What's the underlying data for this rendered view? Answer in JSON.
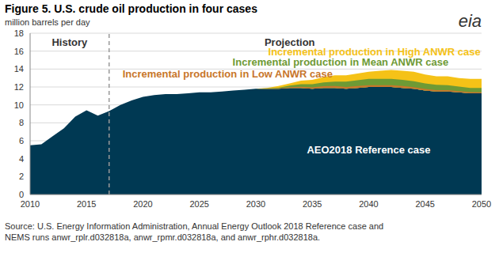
{
  "chart_data": {
    "type": "area",
    "title": "Figure 5. U.S. crude oil production in four cases",
    "subtitle": "million barrels per day",
    "logo": "eia",
    "source": [
      "Source: U.S. Energy Information Administration, Annual Energy Outlook 2018 Reference case and",
      "NEMS runs anwr_rplr.d032818a, anwr_rpmr.d032818a, and anwr_rphr.d032818a."
    ],
    "x": [
      2010,
      2011,
      2012,
      2013,
      2014,
      2015,
      2016,
      2017,
      2018,
      2019,
      2020,
      2021,
      2022,
      2023,
      2024,
      2025,
      2026,
      2027,
      2028,
      2029,
      2030,
      2031,
      2032,
      2033,
      2034,
      2035,
      2036,
      2037,
      2038,
      2039,
      2040,
      2041,
      2042,
      2043,
      2044,
      2045,
      2046,
      2047,
      2048,
      2049,
      2050
    ],
    "series": [
      {
        "name": "AEO2018 Reference case",
        "color": "#003953",
        "values": [
          5.5,
          5.6,
          6.5,
          7.4,
          8.7,
          9.4,
          8.8,
          9.3,
          10.0,
          10.5,
          10.9,
          11.1,
          11.2,
          11.2,
          11.3,
          11.4,
          11.4,
          11.5,
          11.6,
          11.7,
          11.8,
          11.8,
          11.8,
          11.9,
          11.9,
          11.8,
          11.9,
          11.9,
          11.8,
          11.9,
          12.0,
          12.0,
          12.0,
          11.9,
          11.8,
          11.6,
          11.5,
          11.5,
          11.4,
          11.3,
          11.3
        ]
      },
      {
        "name": "Incremental production in High ANWR case",
        "color": "#f5c217",
        "values": [
          0,
          0,
          0,
          0,
          0,
          0,
          0,
          0,
          0,
          0,
          0,
          0,
          0,
          0,
          0,
          0,
          0,
          0,
          0,
          0,
          0,
          0.1,
          0.3,
          0.5,
          0.8,
          1.0,
          1.2,
          1.4,
          1.5,
          1.6,
          1.7,
          1.8,
          1.9,
          1.9,
          1.9,
          1.8,
          1.7,
          1.7,
          1.6,
          1.6,
          1.6
        ]
      },
      {
        "name": "Incremental production in Mean ANWR case",
        "color": "#6e9a35",
        "values": [
          0,
          0,
          0,
          0,
          0,
          0,
          0,
          0,
          0,
          0,
          0,
          0,
          0,
          0,
          0,
          0,
          0,
          0,
          0,
          0,
          0,
          0.05,
          0.12,
          0.25,
          0.4,
          0.5,
          0.6,
          0.7,
          0.8,
          0.85,
          0.9,
          0.9,
          0.9,
          0.9,
          0.85,
          0.8,
          0.75,
          0.7,
          0.65,
          0.6,
          0.6
        ]
      },
      {
        "name": "Incremental production in Low ANWR case",
        "color": "#c8762b",
        "values": [
          0,
          0,
          0,
          0,
          0,
          0,
          0,
          0,
          0,
          0,
          0,
          0,
          0,
          0,
          0,
          0,
          0,
          0,
          0,
          0,
          0,
          0.02,
          0.05,
          0.08,
          0.12,
          0.15,
          0.18,
          0.2,
          0.2,
          0.2,
          0.2,
          0.2,
          0.2,
          0.2,
          0.18,
          0.17,
          0.15,
          0.14,
          0.13,
          0.12,
          0.11
        ]
      }
    ],
    "xlim": [
      2010,
      2050
    ],
    "xticks": [
      2010,
      2015,
      2020,
      2025,
      2030,
      2035,
      2040,
      2045,
      2050
    ],
    "ylim": [
      0,
      18
    ],
    "yticks": [
      0,
      2,
      4,
      6,
      8,
      10,
      12,
      14,
      16,
      18
    ],
    "grid": true,
    "projection_start": 2017,
    "annotations": [
      {
        "text": "History",
        "x": 2013.5,
        "y": 17,
        "color": "#333333"
      },
      {
        "text": "Projection",
        "x": 2033,
        "y": 17,
        "color": "#333333"
      },
      {
        "text": "Incremental production in High ANWR case",
        "x": 2040.5,
        "y": 15.9,
        "color": "#f5c217"
      },
      {
        "text": "Incremental production in Mean ANWR case",
        "x": 2037.5,
        "y": 14.8,
        "color": "#6e9a35"
      },
      {
        "text": "Incremental production in Low ANWR case",
        "x": 2027.5,
        "y": 13.5,
        "color": "#c8762b"
      },
      {
        "text": "AEO2018 Reference case",
        "x": 2040,
        "y": 5,
        "color": "#ffffff"
      }
    ]
  }
}
